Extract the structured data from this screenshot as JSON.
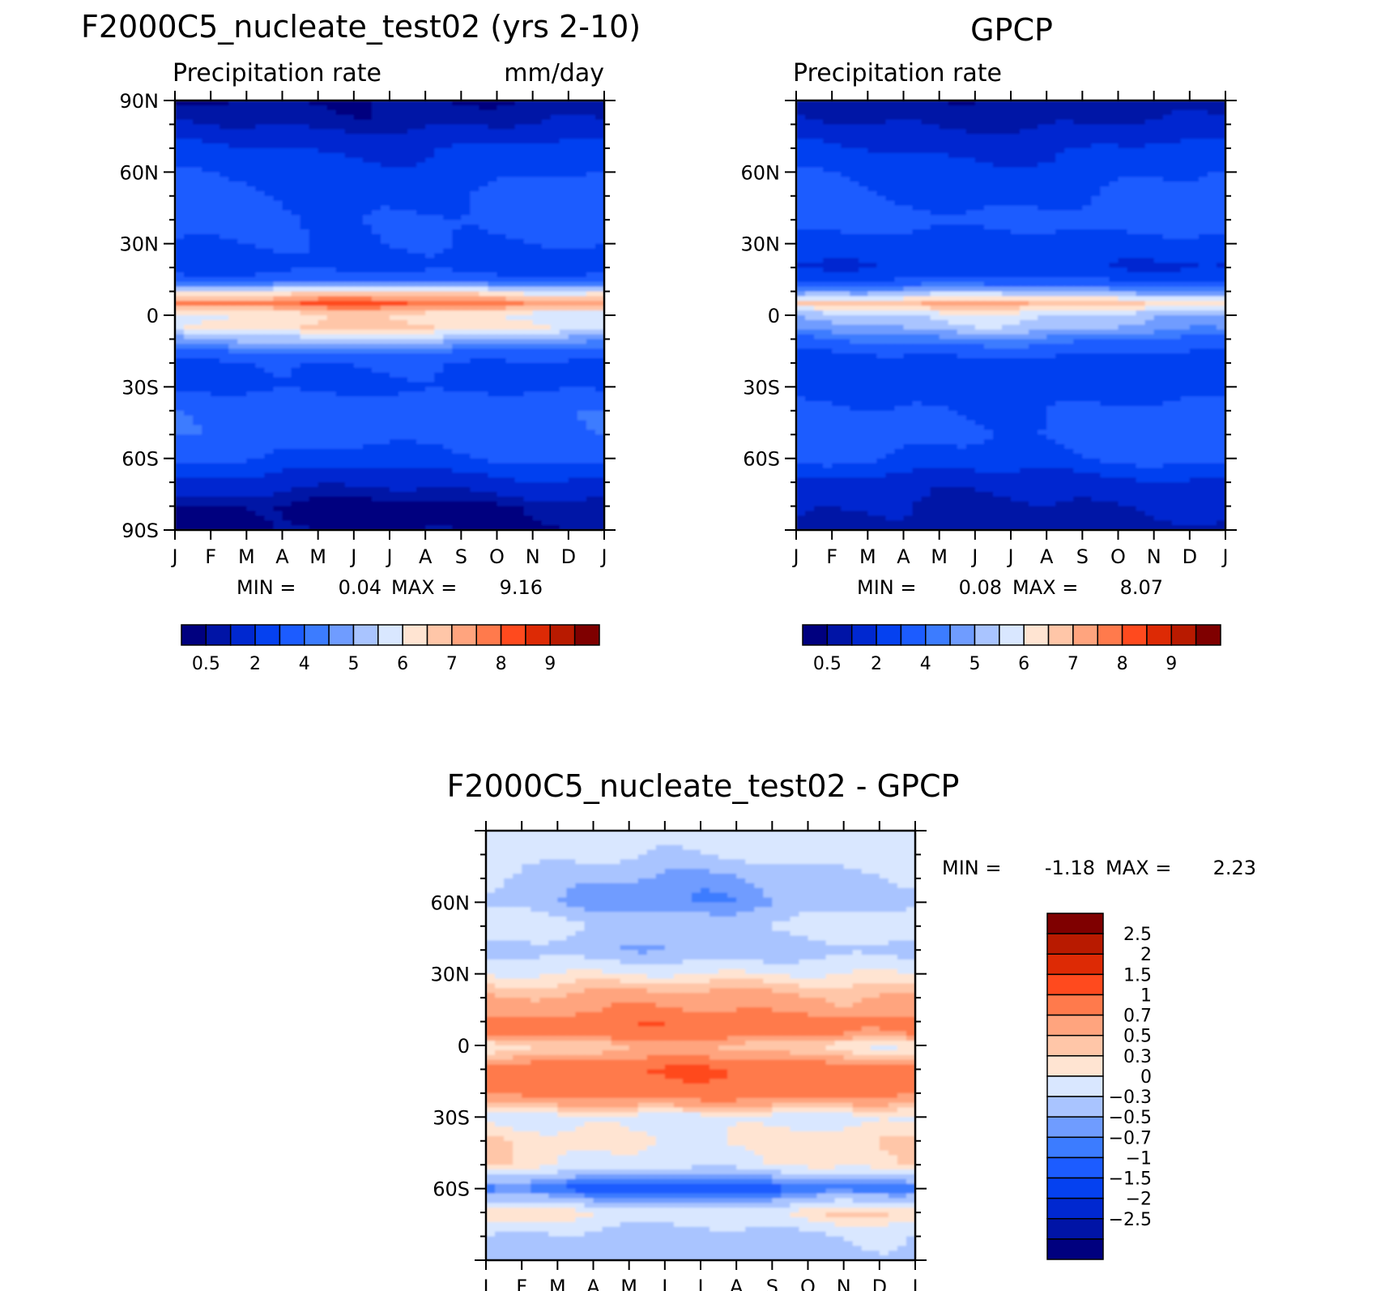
{
  "chart_data": [
    {
      "type": "heatmap",
      "title": "F2000C5_nucleate_test02 (yrs 2-10)",
      "left_subtitle": "Precipitation rate",
      "right_subtitle": "mm/day",
      "x_tick_labels": [
        "J",
        "F",
        "M",
        "A",
        "M",
        "J",
        "J",
        "A",
        "S",
        "O",
        "N",
        "D",
        "J"
      ],
      "y_tick_labels": [
        "90N",
        "60N",
        "30N",
        "0",
        "30S",
        "60S",
        "90S"
      ],
      "ylim": [
        -90,
        90
      ],
      "stats": {
        "min_label": "MIN =",
        "min_value": "0.04",
        "max_label": "MAX =",
        "max_value": "9.16"
      },
      "levels": [
        0.5,
        1,
        2,
        3,
        4,
        4.5,
        5,
        5.5,
        6,
        6.5,
        7,
        7.5,
        8,
        8.5,
        9
      ],
      "colorbar_labels": [
        "0.5",
        "2",
        "4",
        "5",
        "6",
        "7",
        "8",
        "9"
      ],
      "colors": [
        "#00007f",
        "#0014a6",
        "#0028d0",
        "#0541f0",
        "#1c5cff",
        "#3c7cff",
        "#6f9cff",
        "#a9c4ff",
        "#d9e7ff",
        "#ffe4d2",
        "#ffc6a8",
        "#ffa47e",
        "#ff7a4c",
        "#ff4a1e",
        "#dd2a05",
        "#b81a00",
        "#7f0000"
      ],
      "profile": {
        "lat": [
          -90,
          -80,
          -70,
          -60,
          -50,
          -40,
          -30,
          -20,
          -10,
          -5,
          0,
          5,
          10,
          15,
          20,
          30,
          40,
          50,
          60,
          70,
          80,
          90
        ],
        "value": [
          0.4,
          0.4,
          1.5,
          3.0,
          3.6,
          3.7,
          2.8,
          2.9,
          5.2,
          6.4,
          6.0,
          7.8,
          6.0,
          3.5,
          2.6,
          3.0,
          3.2,
          3.1,
          2.6,
          2.1,
          0.9,
          0.5
        ]
      }
    },
    {
      "type": "heatmap",
      "title": "GPCP",
      "left_subtitle": "Precipitation rate",
      "x_tick_labels": [
        "J",
        "F",
        "M",
        "A",
        "M",
        "J",
        "J",
        "A",
        "S",
        "O",
        "N",
        "D",
        "J"
      ],
      "y_tick_labels": [
        "60N",
        "30N",
        "0",
        "30S",
        "60S"
      ],
      "ylim": [
        -90,
        90
      ],
      "stats": {
        "min_label": "MIN =",
        "min_value": "0.08",
        "max_label": "MAX =",
        "max_value": "8.07"
      },
      "levels": [
        0.5,
        1,
        2,
        3,
        4,
        4.5,
        5,
        5.5,
        6,
        6.5,
        7,
        7.5,
        8,
        8.5,
        9
      ],
      "colorbar_labels": [
        "0.5",
        "2",
        "4",
        "5",
        "6",
        "7",
        "8",
        "9"
      ],
      "colors": [
        "#00007f",
        "#0014a6",
        "#0028d0",
        "#0541f0",
        "#1c5cff",
        "#3c7cff",
        "#6f9cff",
        "#a9c4ff",
        "#d9e7ff",
        "#ffe4d2",
        "#ffc6a8",
        "#ffa47e",
        "#ff7a4c",
        "#ff4a1e",
        "#dd2a05",
        "#b81a00",
        "#7f0000"
      ],
      "profile": {
        "lat": [
          -90,
          -80,
          -70,
          -60,
          -50,
          -40,
          -30,
          -20,
          -10,
          -5,
          0,
          5,
          10,
          15,
          20,
          30,
          40,
          50,
          60,
          70,
          80,
          90
        ],
        "value": [
          0.8,
          1.0,
          1.5,
          3.1,
          3.4,
          3.1,
          2.6,
          2.3,
          4.2,
          5.0,
          5.4,
          6.8,
          4.8,
          3.0,
          2.0,
          2.6,
          3.4,
          3.0,
          2.6,
          2.0,
          1.0,
          0.6
        ]
      }
    },
    {
      "type": "heatmap",
      "title": "F2000C5_nucleate_test02 - GPCP",
      "x_tick_labels": [
        "J",
        "F",
        "M",
        "A",
        "M",
        "J",
        "J",
        "A",
        "S",
        "O",
        "N",
        "D",
        "J"
      ],
      "y_tick_labels": [
        "60N",
        "30N",
        "0",
        "30S",
        "60S"
      ],
      "ylim": [
        -90,
        90
      ],
      "stats": {
        "min_label": "MIN =",
        "min_value": "-1.18",
        "max_label": "MAX =",
        "max_value": "2.23"
      },
      "levels": [
        -2.5,
        -2,
        -1.5,
        -1,
        -0.7,
        -0.5,
        -0.3,
        0,
        0.3,
        0.5,
        0.7,
        1,
        1.5,
        2,
        2.5
      ],
      "colorbar_labels": [
        "2.5",
        "2",
        "1.5",
        "1",
        "0.7",
        "0.5",
        "0.3",
        "0",
        "-0.3",
        "-0.5",
        "-0.7",
        "-1",
        "-1.5",
        "-2",
        "-2.5"
      ],
      "colors": [
        "#00007f",
        "#0014a6",
        "#0028d0",
        "#0541f0",
        "#1c5cff",
        "#3c7cff",
        "#6f9cff",
        "#a9c4ff",
        "#d9e7ff",
        "#ffe4d2",
        "#ffc6a8",
        "#ffa47e",
        "#ff7a4c",
        "#ff4a1e",
        "#dd2a05",
        "#b81a00",
        "#7f0000"
      ],
      "profile": {
        "lat": [
          -90,
          -80,
          -70,
          -60,
          -50,
          -40,
          -30,
          -20,
          -10,
          -5,
          0,
          5,
          10,
          15,
          20,
          30,
          40,
          50,
          60,
          70,
          80,
          90
        ],
        "value": [
          -0.1,
          -0.1,
          0.4,
          -0.8,
          0.3,
          0.4,
          0.2,
          1.2,
          1.4,
          0.8,
          0.5,
          1.2,
          1.3,
          0.9,
          0.8,
          0.3,
          -0.2,
          0.1,
          -0.3,
          -0.2,
          0.1,
          0.2
        ]
      }
    }
  ]
}
